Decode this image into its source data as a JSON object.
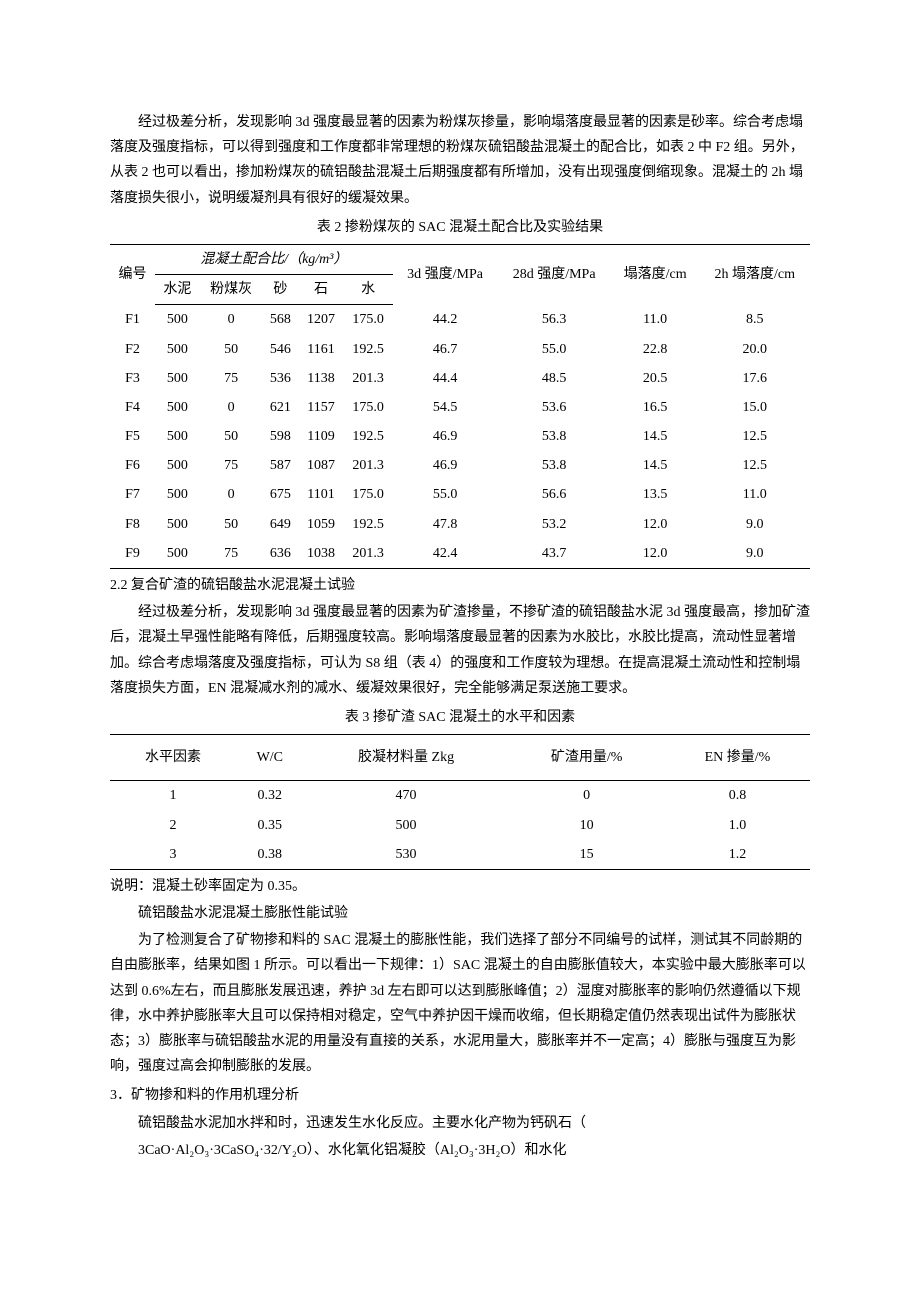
{
  "p1": "经过极差分析，发现影响 3d 强度最显著的因素为粉煤灰掺量，影响塌落度最显著的因素是砂率。综合考虑塌落度及强度指标，可以得到强度和工作度都非常理想的粉煤灰硫铝酸盐混凝土的配合比，如表 2 中 F2 组。另外，从表 2 也可以看出，掺加粉煤灰的硫铝酸盐混凝土后期强度都有所增加，没有出现强度倒缩现象。混凝土的 2h 塌落度损失很小，说明缓凝剂具有很好的缓凝效果。",
  "t2": {
    "caption": "表 2 掺粉煤灰的 SAC 混凝土配合比及实验结果",
    "h_no": "编号",
    "h_mix": "混凝土配合比/（kg/m³）",
    "h_c1": "水泥",
    "h_c2": "粉煤灰",
    "h_c3": "砂",
    "h_c4": "石",
    "h_c5": "水",
    "h_3d": "3d 强度/MPa",
    "h_28d": "28d 强度/MPa",
    "h_slump": "塌落度/cm",
    "h_2h": "2h 塌落度/cm",
    "rows": [
      {
        "no": "F1",
        "c1": "500",
        "c2": "0",
        "c3": "568",
        "c4": "1207",
        "c5": "175.0",
        "s3": "44.2",
        "s28": "56.3",
        "sl": "11.0",
        "h2": "8.5"
      },
      {
        "no": "F2",
        "c1": "500",
        "c2": "50",
        "c3": "546",
        "c4": "1161",
        "c5": "192.5",
        "s3": "46.7",
        "s28": "55.0",
        "sl": "22.8",
        "h2": "20.0"
      },
      {
        "no": "F3",
        "c1": "500",
        "c2": "75",
        "c3": "536",
        "c4": "1138",
        "c5": "201.3",
        "s3": "44.4",
        "s28": "48.5",
        "sl": "20.5",
        "h2": "17.6"
      },
      {
        "no": "F4",
        "c1": "500",
        "c2": "0",
        "c3": "621",
        "c4": "1157",
        "c5": "175.0",
        "s3": "54.5",
        "s28": "53.6",
        "sl": "16.5",
        "h2": "15.0"
      },
      {
        "no": "F5",
        "c1": "500",
        "c2": "50",
        "c3": "598",
        "c4": "1109",
        "c5": "192.5",
        "s3": "46.9",
        "s28": "53.8",
        "sl": "14.5",
        "h2": "12.5"
      },
      {
        "no": "F6",
        "c1": "500",
        "c2": "75",
        "c3": "587",
        "c4": "1087",
        "c5": "201.3",
        "s3": "46.9",
        "s28": "53.8",
        "sl": "14.5",
        "h2": "12.5"
      },
      {
        "no": "F7",
        "c1": "500",
        "c2": "0",
        "c3": "675",
        "c4": "1101",
        "c5": "175.0",
        "s3": "55.0",
        "s28": "56.6",
        "sl": "13.5",
        "h2": "11.0"
      },
      {
        "no": "F8",
        "c1": "500",
        "c2": "50",
        "c3": "649",
        "c4": "1059",
        "c5": "192.5",
        "s3": "47.8",
        "s28": "53.2",
        "sl": "12.0",
        "h2": "9.0"
      },
      {
        "no": "F9",
        "c1": "500",
        "c2": "75",
        "c3": "636",
        "c4": "1038",
        "c5": "201.3",
        "s3": "42.4",
        "s28": "43.7",
        "sl": "12.0",
        "h2": "9.0"
      }
    ]
  },
  "s22": "2.2 复合矿渣的硫铝酸盐水泥混凝土试验",
  "p2": "经过极差分析，发现影响 3d 强度最显著的因素为矿渣掺量，不掺矿渣的硫铝酸盐水泥 3d 强度最高，掺加矿渣后，混凝土早强性能略有降低，后期强度较高。影响塌落度最显著的因素为水胶比，水胶比提高，流动性显著增加。综合考虑塌落度及强度指标，可认为 S8 组（表 4）的强度和工作度较为理想。在提高混凝土流动性和控制塌落度损失方面，EN 混凝减水剂的减水、缓凝效果很好，完全能够满足泵送施工要求。",
  "t3": {
    "caption": "表 3 掺矿渣 SAC 混凝土的水平和因素",
    "h1": "水平因素",
    "h2": "W/C",
    "h3": "胶凝材料量 Zkg",
    "h4": "矿渣用量/%",
    "h5": "EN 掺量/%",
    "rows": [
      {
        "a": "1",
        "b": "0.32",
        "c": "470",
        "d": "0",
        "e": "0.8"
      },
      {
        "a": "2",
        "b": "0.35",
        "c": "500",
        "d": "10",
        "e": "1.0"
      },
      {
        "a": "3",
        "b": "0.38",
        "c": "530",
        "d": "15",
        "e": "1.2"
      }
    ]
  },
  "note3": "说明：混凝土砂率固定为 0.35。",
  "s_sac": "硫铝酸盐水泥混凝土膨胀性能试验",
  "p3": "为了检测复合了矿物掺和料的 SAC 混凝土的膨胀性能，我们选择了部分不同编号的试样，测试其不同龄期的自由膨胀率，结果如图 1 所示。可以看出一下规律：1）SAC 混凝土的自由膨胀值较大，本实验中最大膨胀率可以达到 0.6%左右，而且膨胀发展迅速，养护 3d 左右即可以达到膨胀峰值；2）湿度对膨胀率的影响仍然遵循以下规律，水中养护膨胀率大且可以保持相对稳定，空气中养护因干燥而收缩，但长期稳定值仍然表现出试件为膨胀状态；3）膨胀率与硫铝酸盐水泥的用量没有直接的关系，水泥用量大，膨胀率并不一定高；4）膨胀与强度互为影响，强度过高会抑制膨胀的发展。",
  "s3": "3．矿物掺和料的作用机理分析",
  "p4a": "硫铝酸盐水泥加水拌和时，迅速发生水化反应。主要水化产物为钙矾石（",
  "p4b": "3CaO·Al₂O₃·3CaSO₄·32/Y₂O）、水化氧化铝凝胶（Al₂O₃·3H₂O）和水化"
}
